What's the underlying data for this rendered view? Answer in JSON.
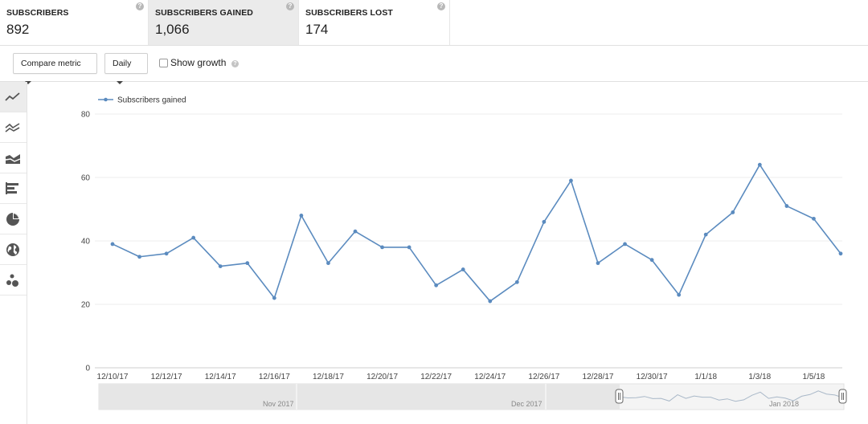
{
  "metrics": [
    {
      "label": "SUBSCRIBERS",
      "value": "892"
    },
    {
      "label": "SUBSCRIBERS GAINED",
      "value": "1,066"
    },
    {
      "label": "SUBSCRIBERS LOST",
      "value": "174"
    }
  ],
  "help_glyph": "?",
  "toolbar": {
    "compare_label": "Compare metric",
    "period_label": "Daily",
    "show_growth_label": "Show growth",
    "show_growth_checked": false
  },
  "rail_icons": [
    "line-chart-icon",
    "multi-line-chart-icon",
    "stacked-area-chart-icon",
    "bar-chart-icon",
    "pie-chart-icon",
    "globe-map-icon",
    "bubble-chart-icon"
  ],
  "navigator": {
    "month_labels": [
      "Nov 2017",
      "Dec 2017",
      "Jan 2018"
    ]
  },
  "chart_data": {
    "type": "line",
    "legend": "Subscribers gained",
    "legend_position": "top-left",
    "series_color": "#5b8bbf",
    "grid": true,
    "ylim": [
      0,
      80
    ],
    "yticks": [
      0,
      20,
      40,
      60,
      80
    ],
    "x": [
      "12/10/17",
      "12/11/17",
      "12/12/17",
      "12/13/17",
      "12/14/17",
      "12/15/17",
      "12/16/17",
      "12/17/17",
      "12/18/17",
      "12/19/17",
      "12/20/17",
      "12/21/17",
      "12/22/17",
      "12/23/17",
      "12/24/17",
      "12/25/17",
      "12/26/17",
      "12/27/17",
      "12/28/17",
      "12/29/17",
      "12/30/17",
      "12/31/17",
      "1/1/18",
      "1/2/18",
      "1/3/18",
      "1/4/18",
      "1/5/18",
      "1/6/18"
    ],
    "xtick_labels": [
      "12/10/17",
      "12/12/17",
      "12/14/17",
      "12/16/17",
      "12/18/17",
      "12/20/17",
      "12/22/17",
      "12/24/17",
      "12/26/17",
      "12/28/17",
      "12/30/17",
      "1/1/18",
      "1/3/18",
      "1/5/18"
    ],
    "values": [
      39,
      35,
      36,
      41,
      32,
      33,
      22,
      48,
      33,
      43,
      38,
      38,
      26,
      31,
      21,
      27,
      46,
      59,
      33,
      39,
      34,
      23,
      42,
      49,
      64,
      51,
      47,
      36
    ]
  }
}
